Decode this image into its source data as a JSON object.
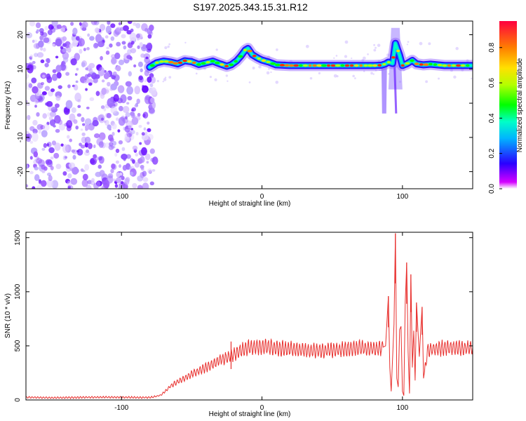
{
  "title": "S197.2025.343.15.31.R12",
  "colors": {
    "snr_line": "#e8302e",
    "axis": "#000000"
  },
  "chart_data": [
    {
      "type": "heatmap",
      "title": "S197.2025.343.15.31.R12",
      "xlabel": "Height of straight line (km)",
      "ylabel": "Frequency (Hz)",
      "xlim": [
        -168,
        150
      ],
      "ylim": [
        -25,
        24
      ],
      "xticks": [
        {
          "v": -100,
          "label": "-100"
        },
        {
          "v": 0,
          "label": "0"
        },
        {
          "v": 100,
          "label": "100"
        }
      ],
      "yticks": [
        {
          "v": 20,
          "label": "20"
        },
        {
          "v": 10,
          "label": "10"
        },
        {
          "v": 0,
          "label": "0"
        },
        {
          "v": -10,
          "label": "-10"
        },
        {
          "v": -20,
          "label": "-20"
        }
      ],
      "ridge": {
        "x": [
          -80,
          -75,
          -70,
          -65,
          -60,
          -55,
          -50,
          -45,
          -40,
          -35,
          -30,
          -25,
          -22,
          -18,
          -15,
          -12,
          -10,
          -7,
          -3,
          0,
          5,
          10,
          20,
          30,
          40,
          50,
          60,
          70,
          80,
          85,
          88,
          90,
          93,
          95,
          98,
          100,
          103,
          107,
          110,
          115,
          120,
          130,
          140,
          150
        ],
        "freq": [
          10.5,
          11.8,
          12.3,
          12.0,
          11.5,
          12.4,
          12.1,
          11.3,
          11.8,
          12.3,
          11.5,
          10.8,
          11.2,
          12.4,
          13.8,
          15.5,
          16.0,
          14.2,
          13.2,
          12.6,
          12.0,
          11.2,
          11.0,
          11.0,
          11.0,
          11.0,
          11.0,
          11.0,
          11.0,
          11.1,
          11.5,
          12.0,
          11.6,
          17.5,
          14.0,
          11.0,
          11.5,
          12.5,
          11.5,
          11.2,
          11.4,
          11.0,
          11.0,
          11.0
        ]
      },
      "colorbar": {
        "label": "Normalized spectral amplitude",
        "range": [
          0.0,
          0.95
        ],
        "ticks": [
          {
            "v": 0.0,
            "label": "0.0"
          },
          {
            "v": 0.2,
            "label": "0.2"
          },
          {
            "v": 0.4,
            "label": "0.4"
          },
          {
            "v": 0.6,
            "label": "0.6"
          },
          {
            "v": 0.8,
            "label": "0.8"
          }
        ]
      }
    },
    {
      "type": "line",
      "xlabel": "Height of straight line (km)",
      "ylabel": "SNR (10 * v/v)",
      "xlim": [
        -168,
        150
      ],
      "ylim": [
        0,
        1550
      ],
      "xticks": [
        {
          "v": -100,
          "label": "-100"
        },
        {
          "v": 0,
          "label": "0"
        },
        {
          "v": 100,
          "label": "100"
        }
      ],
      "yticks": [
        {
          "v": 0,
          "label": "0"
        },
        {
          "v": 500,
          "label": "500"
        },
        {
          "v": 1000,
          "label": "1000"
        },
        {
          "v": 1500,
          "label": "1500"
        }
      ],
      "series": [
        {
          "name": "SNR",
          "x": [
            -168,
            -150,
            -120,
            -100,
            -85,
            -78,
            -72,
            -68,
            -65,
            -60,
            -55,
            -50,
            -45,
            -40,
            -35,
            -30,
            -25,
            -20,
            -15,
            -10,
            -5,
            0,
            10,
            20,
            30,
            40,
            50,
            60,
            70,
            80,
            85,
            88,
            90,
            91,
            92,
            94,
            95,
            96,
            97,
            98,
            99,
            100,
            101,
            102,
            103,
            104,
            105,
            106,
            107,
            108,
            109,
            110,
            112,
            113,
            114,
            115,
            118,
            120,
            130,
            140,
            150
          ],
          "values": [
            25,
            20,
            25,
            25,
            22,
            25,
            45,
            90,
            130,
            170,
            200,
            240,
            270,
            300,
            330,
            370,
            390,
            420,
            460,
            480,
            490,
            490,
            480,
            470,
            460,
            455,
            460,
            470,
            480,
            470,
            480,
            500,
            960,
            300,
            80,
            700,
            1540,
            200,
            120,
            650,
            680,
            80,
            40,
            900,
            1270,
            450,
            60,
            1160,
            300,
            640,
            180,
            900,
            400,
            650,
            860,
            200,
            460,
            470,
            480,
            480,
            480
          ],
          "peaks": [
            {
              "x": -22,
              "v": 540
            },
            {
              "x": 90,
              "v": 960
            },
            {
              "x": 95,
              "v": 1540
            },
            {
              "x": 103,
              "v": 1270
            },
            {
              "x": 106,
              "v": 1160
            },
            {
              "x": 110,
              "v": 900
            },
            {
              "x": 114,
              "v": 860
            }
          ]
        }
      ]
    }
  ]
}
